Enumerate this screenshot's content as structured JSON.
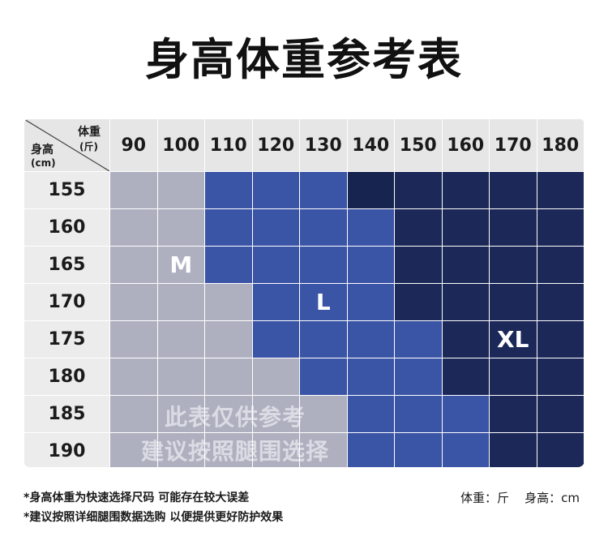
{
  "title": "身高体重参考表",
  "header": {
    "weight_label": "体重",
    "weight_unit": "(斤)",
    "height_label": "身高",
    "height_unit": "(cm)",
    "weights": [
      "90",
      "100",
      "110",
      "120",
      "130",
      "140",
      "150",
      "160",
      "170",
      "180"
    ]
  },
  "rows": [
    {
      "height": "155",
      "sizes": [
        "M",
        "M",
        "L",
        "L",
        "L",
        "XL",
        "XL",
        "XL",
        "XL",
        "XL"
      ]
    },
    {
      "height": "160",
      "sizes": [
        "M",
        "M",
        "L",
        "L",
        "L",
        "L",
        "XL",
        "XL",
        "XL",
        "XL"
      ]
    },
    {
      "height": "165",
      "sizes": [
        "M",
        "M",
        "L",
        "L",
        "L",
        "L",
        "XL",
        "XL",
        "XL",
        "XL"
      ]
    },
    {
      "height": "170",
      "sizes": [
        "M",
        "M",
        "M",
        "L",
        "L",
        "L",
        "XL",
        "XL",
        "XL",
        "XL"
      ]
    },
    {
      "height": "175",
      "sizes": [
        "M",
        "M",
        "M",
        "L",
        "L",
        "L",
        "L",
        "XL",
        "XL",
        "XL"
      ]
    },
    {
      "height": "180",
      "sizes": [
        "M",
        "M",
        "M",
        "M",
        "L",
        "L",
        "L",
        "XL",
        "XL",
        "XL"
      ]
    },
    {
      "height": "185",
      "sizes": [
        "M",
        "M",
        "M",
        "M",
        "M",
        "L",
        "L",
        "L",
        "XL",
        "XL"
      ]
    },
    {
      "height": "190",
      "sizes": [
        "M",
        "M",
        "M",
        "M",
        "M",
        "L",
        "L",
        "L",
        "XL",
        "XL"
      ]
    }
  ],
  "size_colors": {
    "M": "#aeb0c0",
    "L": "#3a54a6",
    "XL": "#1c2858"
  },
  "darker_cell_color": "#17244f",
  "size_labels": [
    {
      "text": "M",
      "row": 2,
      "col": 1
    },
    {
      "text": "L",
      "row": 3,
      "col": 4
    },
    {
      "text": "XL",
      "row": 4,
      "col": 8
    }
  ],
  "watermark": {
    "line1": "此表仅供参考",
    "line2": "建议按照腿围选择"
  },
  "notes": {
    "line1": "*身高体重为快速选择尺码  可能存在较大误差",
    "line2": "*建议按照详细腿围数据选购 以便提供更好防护效果",
    "units": "体重：斤    身高：cm"
  }
}
